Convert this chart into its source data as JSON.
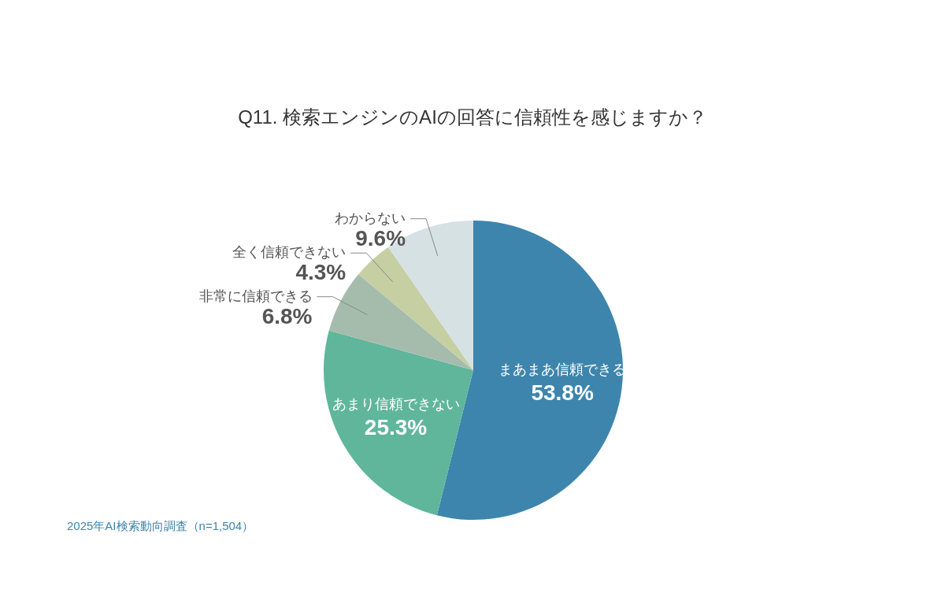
{
  "chart_data": {
    "type": "pie",
    "title": "Q11. 検索エンジンのAIの回答に信頼性を感じますか？",
    "categories": [
      "まあまあ信頼できる",
      "あまり信頼できない",
      "非常に信頼できる",
      "全く信頼できない",
      "わからない"
    ],
    "values": [
      53.8,
      25.3,
      6.8,
      4.3,
      9.6
    ],
    "colors": [
      "#3d85ad",
      "#5fb69b",
      "#a5bcad",
      "#c5cfa2",
      "#d6e1e4"
    ],
    "value_labels": [
      "53.8%",
      "25.3%",
      "6.8%",
      "4.3%",
      "9.6%"
    ],
    "annotations": [
      "2025年AI検索動向調査（n=1,504）"
    ]
  }
}
